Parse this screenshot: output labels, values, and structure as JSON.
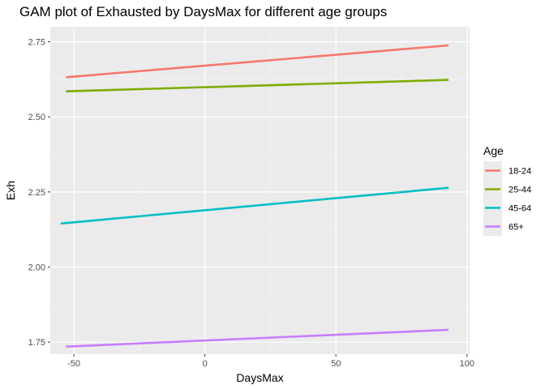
{
  "chart_data": {
    "type": "line",
    "title": "GAM plot of Exhausted by DaysMax for different age groups",
    "xlabel": "DaysMax",
    "ylabel": "Exh",
    "xlim": [
      -59,
      101
    ],
    "ylim": [
      1.71,
      2.8
    ],
    "x_ticks": [
      -50,
      0,
      50,
      100
    ],
    "x_tick_labels": [
      "-50",
      "0",
      "50",
      "100"
    ],
    "y_ticks": [
      1.75,
      2.0,
      2.25,
      2.5,
      2.75
    ],
    "y_tick_labels": [
      "1.75",
      "2.00",
      "2.25",
      "2.50",
      "2.75"
    ],
    "grid": true,
    "legend_title": "Age",
    "legend_position": "right",
    "series": [
      {
        "name": "18-24",
        "color": "#F8766D",
        "x": [
          -53,
          93
        ],
        "y": [
          2.632,
          2.738
        ]
      },
      {
        "name": "25-44",
        "color": "#7CAE00",
        "x": [
          -53,
          93
        ],
        "y": [
          2.585,
          2.623
        ]
      },
      {
        "name": "45-64",
        "color": "#00BFC4",
        "x": [
          -55,
          93
        ],
        "y": [
          2.145,
          2.264
        ]
      },
      {
        "name": "65+",
        "color": "#C77CFF",
        "x": [
          -53,
          93
        ],
        "y": [
          1.735,
          1.791
        ]
      }
    ]
  }
}
